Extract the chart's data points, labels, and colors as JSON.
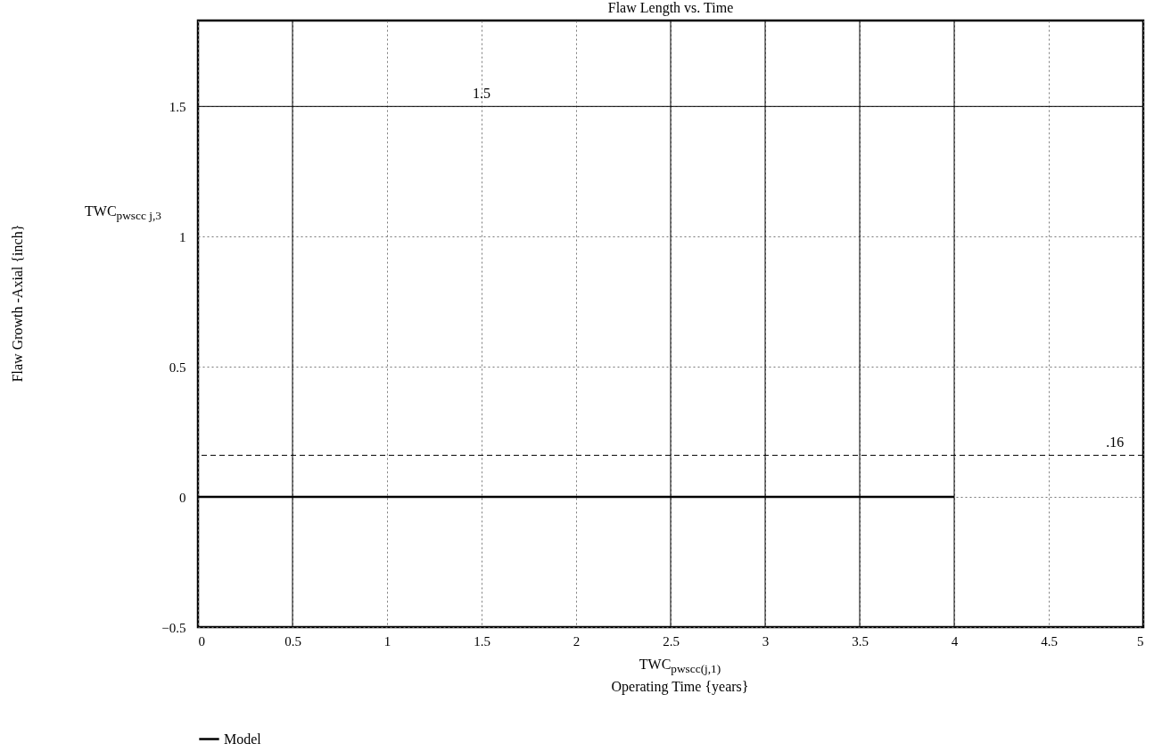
{
  "chart_data": {
    "type": "line",
    "title": "Flaw Length vs. Time",
    "xlabel": "TWC$_{pwscc(j,1)}$\nOperating Time  {years}",
    "ylabel": "Flaw Growth -Axial {inch}\nTWC$_{pwscc j,3}$",
    "x": [
      0,
      4
    ],
    "series": [
      {
        "name": "Model",
        "color": "#000000",
        "values": [
          0,
          0
        ]
      }
    ],
    "xlim": [
      0,
      5
    ],
    "xticks": [
      0,
      0.5,
      1,
      1.5,
      2,
      2.5,
      3,
      3.5,
      4,
      4.5,
      5
    ],
    "ylim": [
      -0.5,
      1.83
    ],
    "yticks": [
      -0.5,
      0,
      0.5,
      1,
      1.5
    ],
    "grid": true,
    "legend": "bottom left",
    "marker": "none",
    "line_style": "solid",
    "ref_lines": [
      {
        "axis": "y",
        "value": 1.5,
        "label": "1.5",
        "line_style": "solid"
      },
      {
        "axis": "y",
        "value": 0.16,
        "label": ".16",
        "line_style": "dashed"
      },
      {
        "axis": "x",
        "value": 0.5,
        "label": null,
        "line_style": "solid"
      },
      {
        "axis": "x",
        "value": 2.5,
        "label": null,
        "line_style": "solid"
      },
      {
        "axis": "x",
        "value": 3,
        "label": null,
        "line_style": "solid"
      },
      {
        "axis": "x",
        "value": 3.5,
        "label": null,
        "line_style": "solid"
      },
      {
        "axis": "x",
        "value": 4,
        "label": null,
        "line_style": "solid"
      }
    ]
  }
}
